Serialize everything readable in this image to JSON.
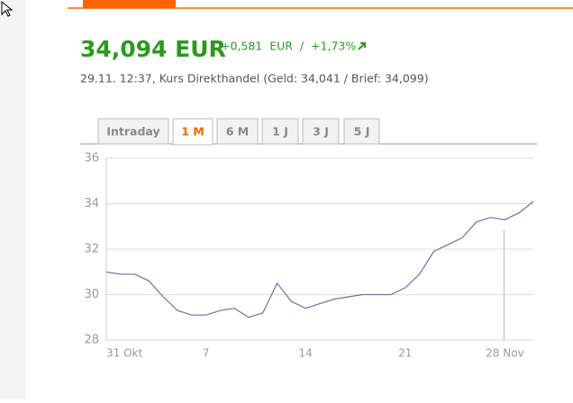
{
  "quote": {
    "price": "34,094 EUR",
    "change": "+0,581  EUR  /  +1,73%",
    "info": "29.11. 12:37, Kurs Direkthandel (Geld: 34,041 / Brief: 34,099)"
  },
  "tabs": [
    "Intraday",
    "1 M",
    "6 M",
    "1 J",
    "3 J",
    "5 J"
  ],
  "chart_data": {
    "type": "line",
    "categories": [
      "31 Okt",
      null,
      null,
      null,
      null,
      null,
      null,
      "7",
      null,
      null,
      null,
      null,
      null,
      null,
      "14",
      null,
      null,
      null,
      null,
      null,
      null,
      "21",
      null,
      null,
      null,
      null,
      null,
      null,
      "28 Nov",
      null,
      null
    ],
    "series": [
      {
        "color": "#6a74a8",
        "values": [
          31.0,
          30.9,
          30.9,
          30.6,
          29.9,
          29.3,
          29.1,
          29.1,
          29.3,
          29.4,
          29.0,
          29.2,
          30.5,
          29.7,
          29.4,
          29.6,
          29.8,
          29.9,
          30.0,
          30.0,
          30.0,
          30.3,
          30.9,
          31.9,
          32.2,
          32.5,
          33.2,
          33.4,
          33.3,
          33.6,
          34.1
        ]
      }
    ],
    "ylim": [
      28,
      36
    ],
    "yticks": [
      28,
      30,
      32,
      34,
      36
    ],
    "grid": true
  }
}
